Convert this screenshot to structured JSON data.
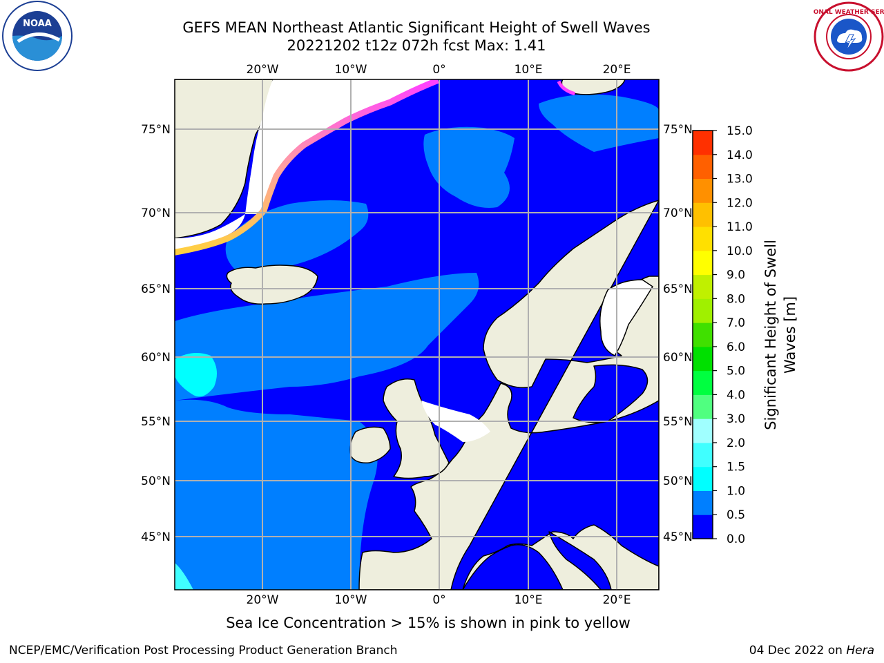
{
  "header": {
    "title": "GEFS MEAN Northeast Atlantic Significant Height of Swell Waves",
    "subtitle": "20221202 t12z 072h fcst   Max: 1.41"
  },
  "map": {
    "longitude_labels": [
      "20°W",
      "10°W",
      "0°",
      "10°E",
      "20°E"
    ],
    "latitude_labels": [
      "75°N",
      "70°N",
      "65°N",
      "60°N",
      "55°N",
      "50°N",
      "45°N"
    ],
    "colors": {
      "ocean_low": "#0000ff",
      "ocean_mid": "#007fff",
      "ocean_high": "#00ffff",
      "land": "#eeeedd",
      "grid": "#b0b0b0"
    }
  },
  "colorbar": {
    "title_line1": "Significant Height of Swell",
    "title_line2": "Waves [m]",
    "tick_labels": [
      "15.0",
      "14.0",
      "13.0",
      "12.0",
      "11.0",
      "10.0",
      "9.0",
      "8.0",
      "7.0",
      "6.0",
      "5.0",
      "4.0",
      "3.0",
      "2.0",
      "1.5",
      "1.0",
      "0.5",
      "0.0"
    ],
    "colors_bottom_to_top": [
      "#0000ff",
      "#007fff",
      "#00ffff",
      "#40ffff",
      "#a0ffff",
      "#50ff80",
      "#00ff40",
      "#00e000",
      "#40e000",
      "#a0f000",
      "#c0f000",
      "#ffff00",
      "#ffe000",
      "#ffc000",
      "#ff9000",
      "#ff6000",
      "#ff3000",
      "#ff0000"
    ]
  },
  "note": "Sea Ice Concentration > 15% is shown in pink to yellow",
  "footer": {
    "left": "NCEP/EMC/Verification Post Processing Product Generation Branch",
    "date": "04 Dec 2022 on ",
    "host": "Hera"
  },
  "logos": {
    "noaa_text": "NOAA",
    "nws_text": "NATIONAL WEATHER SERVICE"
  }
}
